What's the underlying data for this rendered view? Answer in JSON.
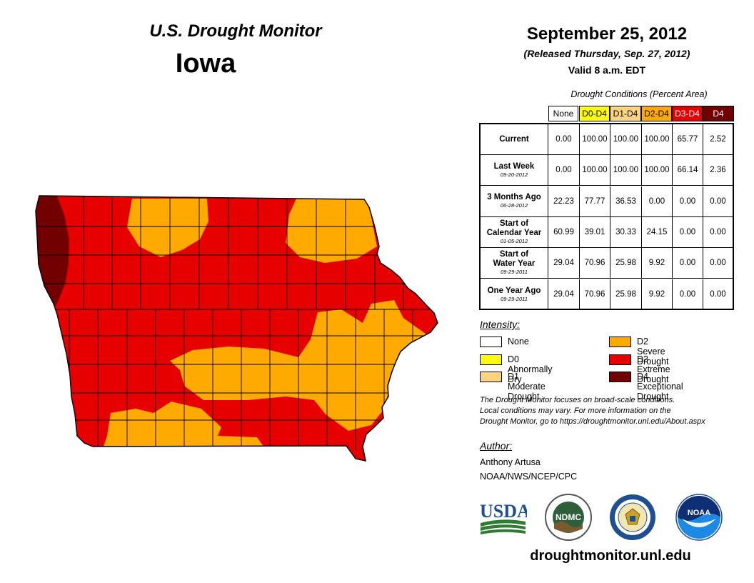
{
  "header": {
    "title": "U.S. Drought Monitor",
    "state": "Iowa",
    "date": "September 25, 2012",
    "released": "(Released Thursday, Sep. 27, 2012)",
    "valid": "Valid 8 a.m. EDT"
  },
  "table": {
    "caption": "Drought Conditions (Percent Area)",
    "columns": [
      {
        "label": "None",
        "color": "#ffffff"
      },
      {
        "label": "D0-D4",
        "color": "#ffff00"
      },
      {
        "label": "D1-D4",
        "color": "#fcd37f"
      },
      {
        "label": "D2-D4",
        "color": "#ffaa00"
      },
      {
        "label": "D3-D4",
        "color": "#e60000"
      },
      {
        "label": "D4",
        "color": "#730000"
      }
    ],
    "rows": [
      {
        "label": "Current",
        "date": "",
        "values": [
          "0.00",
          "100.00",
          "100.00",
          "100.00",
          "65.77",
          "2.52"
        ]
      },
      {
        "label": "Last Week",
        "date": "09-20-2012",
        "values": [
          "0.00",
          "100.00",
          "100.00",
          "100.00",
          "66.14",
          "2.36"
        ]
      },
      {
        "label": "3 Months Ago",
        "date": "06-28-2012",
        "values": [
          "22.23",
          "77.77",
          "36.53",
          "0.00",
          "0.00",
          "0.00"
        ]
      },
      {
        "label": "Start of Calendar Year",
        "date": "01-05-2012",
        "values": [
          "60.99",
          "39.01",
          "30.33",
          "24.15",
          "0.00",
          "0.00"
        ]
      },
      {
        "label": "Start of Water Year",
        "date": "09-29-2011",
        "values": [
          "29.04",
          "70.96",
          "25.98",
          "9.92",
          "0.00",
          "0.00"
        ]
      },
      {
        "label": "One Year Ago",
        "date": "09-29-2011",
        "values": [
          "29.04",
          "70.96",
          "25.98",
          "9.92",
          "0.00",
          "0.00"
        ]
      }
    ]
  },
  "legend": {
    "title": "Intensity:",
    "items": [
      {
        "label": "None",
        "color": "#ffffff"
      },
      {
        "label": "D0 Abnormally Dry",
        "color": "#ffff00"
      },
      {
        "label": "D1 Moderate Drought",
        "color": "#fcd37f"
      },
      {
        "label": "D2 Severe Drought",
        "color": "#ffaa00"
      },
      {
        "label": "D3 Extreme Drought",
        "color": "#e60000"
      },
      {
        "label": "D4 Exceptional Drought",
        "color": "#730000"
      }
    ]
  },
  "note": {
    "line1": "The Drought Monitor focuses on broad-scale conditions.",
    "line2": "Local conditions may vary. For more information on the",
    "line3": "Drought Monitor, go to https://droughtmonitor.unl.edu/About.aspx"
  },
  "author": {
    "heading": "Author:",
    "name": "Anthony Artusa",
    "org": "NOAA/NWS/NCEP/CPC"
  },
  "logos": {
    "usda": "USDA",
    "ndmc": "NDMC",
    "noaa": "NOAA"
  },
  "footer": {
    "url": "droughtmonitor.unl.edu"
  },
  "map_colors": {
    "D2": "#ffaa00",
    "D3": "#e60000",
    "D4": "#730000",
    "county_line": "#000000"
  }
}
